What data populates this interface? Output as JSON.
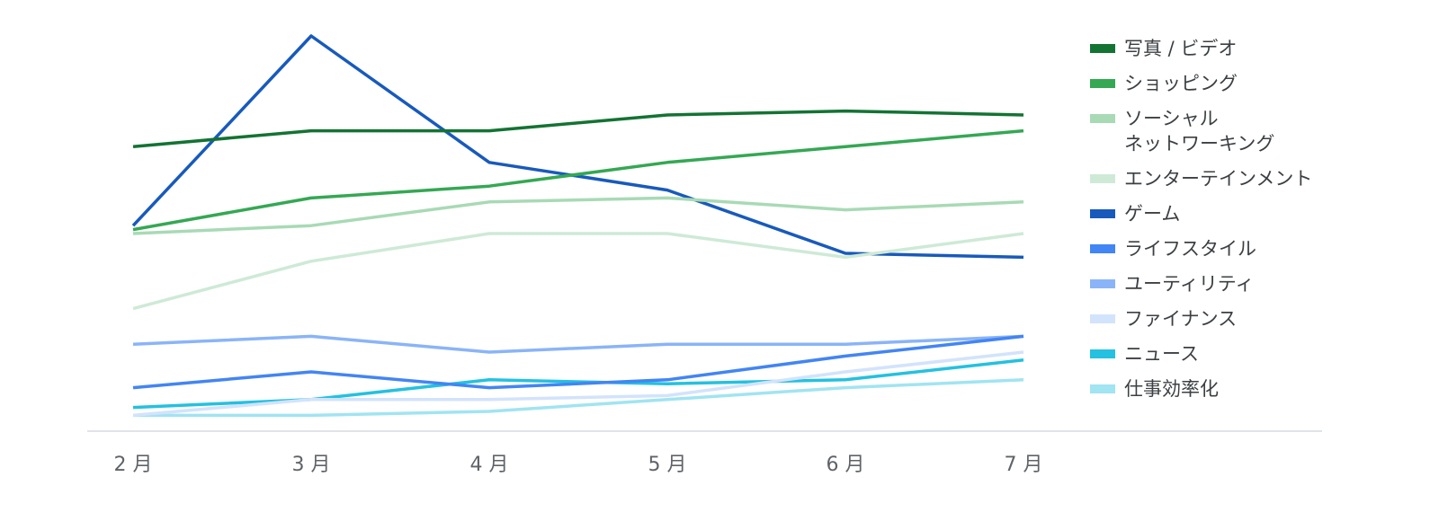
{
  "chart_data": {
    "type": "line",
    "categories": [
      "2 月",
      "3 月",
      "4 月",
      "5 月",
      "6 月",
      "7 月"
    ],
    "ylim": [
      0,
      100
    ],
    "legend": "right",
    "series": [
      {
        "name": "写真 / ビデオ",
        "color": "#137333",
        "values": [
          72,
          76,
          76,
          80,
          81,
          80
        ]
      },
      {
        "name": "ショッピング",
        "color": "#34a853",
        "values": [
          51,
          59,
          62,
          68,
          72,
          76
        ]
      },
      {
        "name": "ソーシャル\nネットワーキング",
        "color": "#a8dab5",
        "values": [
          50,
          52,
          58,
          59,
          56,
          58
        ]
      },
      {
        "name": "エンターテインメント",
        "color": "#ceead6",
        "values": [
          31,
          43,
          50,
          50,
          44,
          50
        ]
      },
      {
        "name": "ゲーム",
        "color": "#185abc",
        "values": [
          52,
          100,
          68,
          61,
          45,
          44
        ]
      },
      {
        "name": "ライフスタイル",
        "color": "#4285f4",
        "values": [
          11,
          15,
          11,
          13,
          19,
          24
        ]
      },
      {
        "name": "ユーティリティ",
        "color": "#8ab4f8",
        "values": [
          22,
          24,
          20,
          22,
          22,
          24
        ]
      },
      {
        "name": "ファイナンス",
        "color": "#d2e3fc",
        "values": [
          4,
          8,
          8,
          9,
          15,
          20
        ]
      },
      {
        "name": "ニュース",
        "color": "#24c1e0",
        "values": [
          6,
          8,
          13,
          12,
          13,
          18
        ]
      },
      {
        "name": "仕事効率化",
        "color": "#a1e4f2",
        "values": [
          4,
          4,
          5,
          8,
          11,
          13
        ]
      }
    ]
  }
}
